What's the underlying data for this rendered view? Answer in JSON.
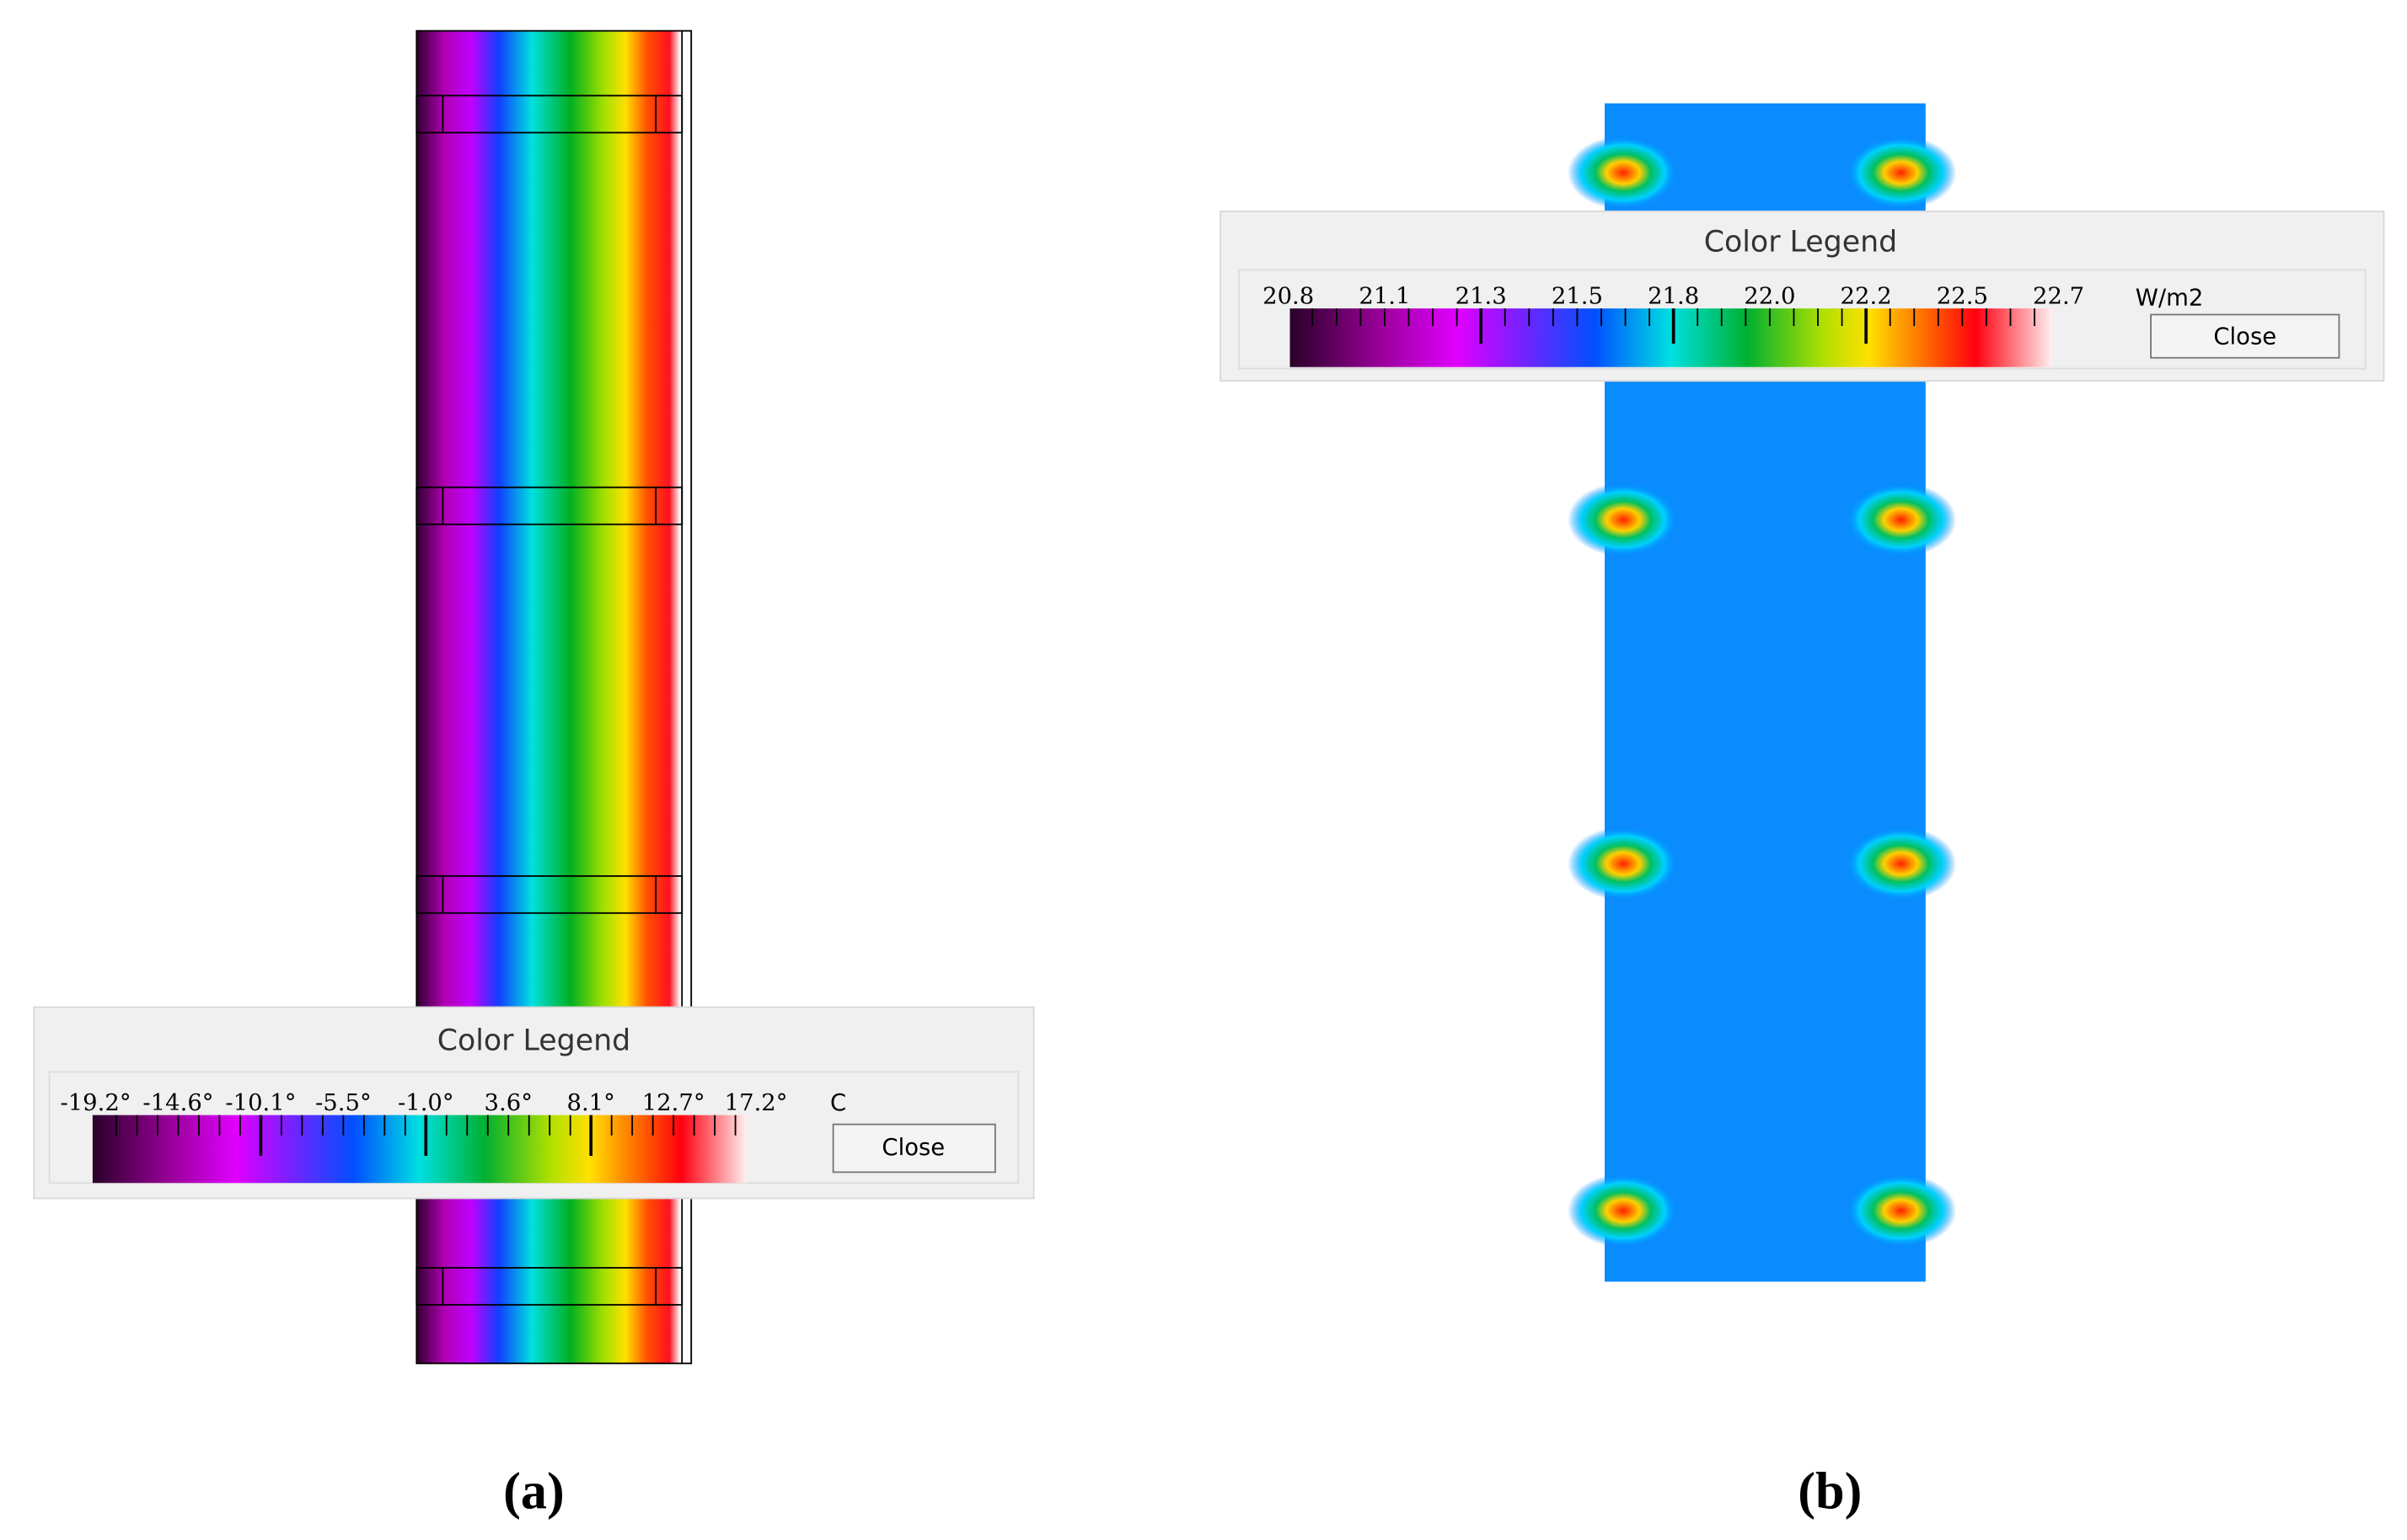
{
  "panels": [
    {
      "label": "(a)",
      "legend": {
        "title": "Color Legend",
        "ticks": [
          "-19.2°",
          "-14.6°",
          "-10.1°",
          "-5.5°",
          "-1.0°",
          "3.6°",
          "8.1°",
          "12.7°",
          "17.2°"
        ],
        "unit": "C",
        "button": "Close"
      }
    },
    {
      "label": "(b)",
      "legend": {
        "title": "Color Legend",
        "ticks": [
          "20.8",
          "21.1",
          "21.3",
          "21.5",
          "21.8",
          "22.0",
          "22.2",
          "22.5",
          "22.7"
        ],
        "unit": "W/m2",
        "button": "Close"
      }
    }
  ]
}
